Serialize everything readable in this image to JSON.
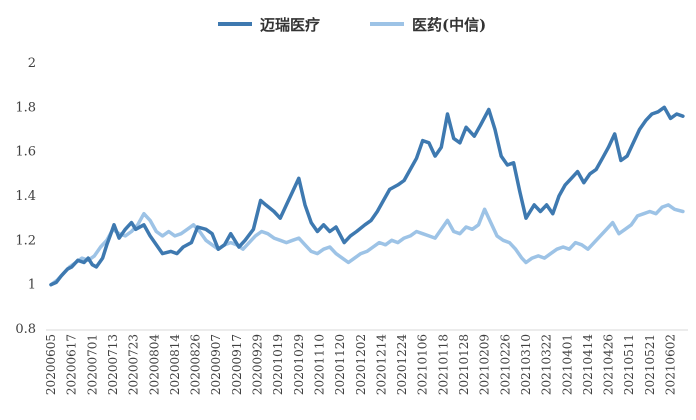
{
  "chart_data": {
    "type": "line",
    "title": "",
    "xlabel": "",
    "ylabel": "",
    "ylim": [
      0.8,
      2.0
    ],
    "yticks": [
      "0.8",
      "1",
      "1.2",
      "1.4",
      "1.6",
      "1.8",
      "2"
    ],
    "grid": false,
    "legend_position": "top-center",
    "x_tick_labels": [
      "20200605",
      "20200617",
      "20200701",
      "20200713",
      "20200723",
      "20200804",
      "20200814",
      "20200826",
      "20200907",
      "20200917",
      "20200929",
      "20201019",
      "20201029",
      "20201110",
      "20201120",
      "20201202",
      "20201214",
      "20201224",
      "20210106",
      "20210118",
      "20210128",
      "20210209",
      "20210226",
      "20210310",
      "20210322",
      "20210401",
      "20210414",
      "20210426",
      "20210511",
      "20210521",
      "20210602"
    ],
    "series": [
      {
        "name": "迈瑞医疗",
        "color": "#3e79b0",
        "points": [
          [
            0,
            1.0
          ],
          [
            0.25,
            1.01
          ],
          [
            0.5,
            1.04
          ],
          [
            0.8,
            1.07
          ],
          [
            1.0,
            1.08
          ],
          [
            1.3,
            1.11
          ],
          [
            1.6,
            1.1
          ],
          [
            1.8,
            1.12
          ],
          [
            2.0,
            1.09
          ],
          [
            2.2,
            1.08
          ],
          [
            2.5,
            1.12
          ],
          [
            2.7,
            1.18
          ],
          [
            2.9,
            1.23
          ],
          [
            3.05,
            1.27
          ],
          [
            3.3,
            1.21
          ],
          [
            3.6,
            1.25
          ],
          [
            3.9,
            1.28
          ],
          [
            4.1,
            1.25
          ],
          [
            4.5,
            1.27
          ],
          [
            4.8,
            1.22
          ],
          [
            5.1,
            1.18
          ],
          [
            5.4,
            1.14
          ],
          [
            5.8,
            1.15
          ],
          [
            6.1,
            1.14
          ],
          [
            6.4,
            1.17
          ],
          [
            6.8,
            1.19
          ],
          [
            7.1,
            1.26
          ],
          [
            7.5,
            1.25
          ],
          [
            7.8,
            1.23
          ],
          [
            8.1,
            1.16
          ],
          [
            8.4,
            1.18
          ],
          [
            8.7,
            1.23
          ],
          [
            9.1,
            1.17
          ],
          [
            9.4,
            1.2
          ],
          [
            9.8,
            1.25
          ],
          [
            10.15,
            1.38
          ],
          [
            10.4,
            1.36
          ],
          [
            10.8,
            1.33
          ],
          [
            11.1,
            1.3
          ],
          [
            11.4,
            1.36
          ],
          [
            11.7,
            1.42
          ],
          [
            12.0,
            1.48
          ],
          [
            12.3,
            1.36
          ],
          [
            12.6,
            1.28
          ],
          [
            12.9,
            1.24
          ],
          [
            13.2,
            1.27
          ],
          [
            13.5,
            1.24
          ],
          [
            13.8,
            1.26
          ],
          [
            14.2,
            1.19
          ],
          [
            14.5,
            1.22
          ],
          [
            14.8,
            1.24
          ],
          [
            15.2,
            1.27
          ],
          [
            15.5,
            1.29
          ],
          [
            15.8,
            1.33
          ],
          [
            16.1,
            1.38
          ],
          [
            16.4,
            1.43
          ],
          [
            16.8,
            1.45
          ],
          [
            17.1,
            1.47
          ],
          [
            17.4,
            1.52
          ],
          [
            17.7,
            1.57
          ],
          [
            18.0,
            1.65
          ],
          [
            18.3,
            1.64
          ],
          [
            18.6,
            1.58
          ],
          [
            18.9,
            1.62
          ],
          [
            19.2,
            1.77
          ],
          [
            19.5,
            1.66
          ],
          [
            19.8,
            1.64
          ],
          [
            20.1,
            1.71
          ],
          [
            20.5,
            1.67
          ],
          [
            20.8,
            1.72
          ],
          [
            21.2,
            1.79
          ],
          [
            21.5,
            1.7
          ],
          [
            21.8,
            1.58
          ],
          [
            22.1,
            1.54
          ],
          [
            22.4,
            1.55
          ],
          [
            22.7,
            1.42
          ],
          [
            23.0,
            1.3
          ],
          [
            23.2,
            1.33
          ],
          [
            23.4,
            1.36
          ],
          [
            23.7,
            1.33
          ],
          [
            24.0,
            1.36
          ],
          [
            24.3,
            1.32
          ],
          [
            24.6,
            1.4
          ],
          [
            24.9,
            1.45
          ],
          [
            25.2,
            1.48
          ],
          [
            25.5,
            1.51
          ],
          [
            25.8,
            1.46
          ],
          [
            26.1,
            1.5
          ],
          [
            26.4,
            1.52
          ],
          [
            26.7,
            1.57
          ],
          [
            27.0,
            1.62
          ],
          [
            27.3,
            1.68
          ],
          [
            27.6,
            1.56
          ],
          [
            27.9,
            1.58
          ],
          [
            28.2,
            1.64
          ],
          [
            28.5,
            1.7
          ],
          [
            28.8,
            1.74
          ],
          [
            29.1,
            1.77
          ],
          [
            29.4,
            1.78
          ],
          [
            29.7,
            1.8
          ],
          [
            30.0,
            1.75
          ],
          [
            30.3,
            1.77
          ],
          [
            30.6,
            1.76
          ]
        ]
      },
      {
        "name": "医药(中信)",
        "color": "#9dc3e6",
        "points": [
          [
            0,
            1.0
          ],
          [
            0.3,
            1.02
          ],
          [
            0.6,
            1.05
          ],
          [
            0.9,
            1.08
          ],
          [
            1.2,
            1.1
          ],
          [
            1.5,
            1.12
          ],
          [
            1.8,
            1.11
          ],
          [
            2.1,
            1.13
          ],
          [
            2.4,
            1.17
          ],
          [
            2.7,
            1.2
          ],
          [
            3.0,
            1.25
          ],
          [
            3.3,
            1.23
          ],
          [
            3.6,
            1.22
          ],
          [
            3.9,
            1.24
          ],
          [
            4.2,
            1.27
          ],
          [
            4.5,
            1.32
          ],
          [
            4.8,
            1.29
          ],
          [
            5.1,
            1.24
          ],
          [
            5.4,
            1.22
          ],
          [
            5.7,
            1.24
          ],
          [
            6.0,
            1.22
          ],
          [
            6.3,
            1.23
          ],
          [
            6.6,
            1.25
          ],
          [
            6.9,
            1.27
          ],
          [
            7.2,
            1.24
          ],
          [
            7.5,
            1.2
          ],
          [
            7.8,
            1.18
          ],
          [
            8.1,
            1.16
          ],
          [
            8.4,
            1.18
          ],
          [
            8.7,
            1.19
          ],
          [
            9.0,
            1.18
          ],
          [
            9.3,
            1.16
          ],
          [
            9.6,
            1.19
          ],
          [
            9.9,
            1.22
          ],
          [
            10.2,
            1.24
          ],
          [
            10.5,
            1.23
          ],
          [
            10.8,
            1.21
          ],
          [
            11.1,
            1.2
          ],
          [
            11.4,
            1.19
          ],
          [
            11.7,
            1.2
          ],
          [
            12.0,
            1.21
          ],
          [
            12.3,
            1.18
          ],
          [
            12.6,
            1.15
          ],
          [
            12.9,
            1.14
          ],
          [
            13.2,
            1.16
          ],
          [
            13.5,
            1.17
          ],
          [
            13.8,
            1.14
          ],
          [
            14.1,
            1.12
          ],
          [
            14.4,
            1.1
          ],
          [
            14.7,
            1.12
          ],
          [
            15.0,
            1.14
          ],
          [
            15.3,
            1.15
          ],
          [
            15.6,
            1.17
          ],
          [
            15.9,
            1.19
          ],
          [
            16.2,
            1.18
          ],
          [
            16.5,
            1.2
          ],
          [
            16.8,
            1.19
          ],
          [
            17.1,
            1.21
          ],
          [
            17.4,
            1.22
          ],
          [
            17.7,
            1.24
          ],
          [
            18.0,
            1.23
          ],
          [
            18.3,
            1.22
          ],
          [
            18.6,
            1.21
          ],
          [
            18.9,
            1.25
          ],
          [
            19.2,
            1.29
          ],
          [
            19.5,
            1.24
          ],
          [
            19.8,
            1.23
          ],
          [
            20.1,
            1.26
          ],
          [
            20.4,
            1.25
          ],
          [
            20.7,
            1.27
          ],
          [
            21.0,
            1.34
          ],
          [
            21.3,
            1.28
          ],
          [
            21.6,
            1.22
          ],
          [
            21.9,
            1.2
          ],
          [
            22.2,
            1.19
          ],
          [
            22.5,
            1.16
          ],
          [
            22.8,
            1.12
          ],
          [
            23.0,
            1.1
          ],
          [
            23.3,
            1.12
          ],
          [
            23.6,
            1.13
          ],
          [
            23.9,
            1.12
          ],
          [
            24.2,
            1.14
          ],
          [
            24.5,
            1.16
          ],
          [
            24.8,
            1.17
          ],
          [
            25.1,
            1.16
          ],
          [
            25.4,
            1.19
          ],
          [
            25.7,
            1.18
          ],
          [
            26.0,
            1.16
          ],
          [
            26.3,
            1.19
          ],
          [
            26.6,
            1.22
          ],
          [
            26.9,
            1.25
          ],
          [
            27.2,
            1.28
          ],
          [
            27.5,
            1.23
          ],
          [
            27.8,
            1.25
          ],
          [
            28.1,
            1.27
          ],
          [
            28.4,
            1.31
          ],
          [
            28.7,
            1.32
          ],
          [
            29.0,
            1.33
          ],
          [
            29.3,
            1.32
          ],
          [
            29.6,
            1.35
          ],
          [
            29.9,
            1.36
          ],
          [
            30.2,
            1.34
          ],
          [
            30.6,
            1.33
          ]
        ]
      }
    ]
  }
}
